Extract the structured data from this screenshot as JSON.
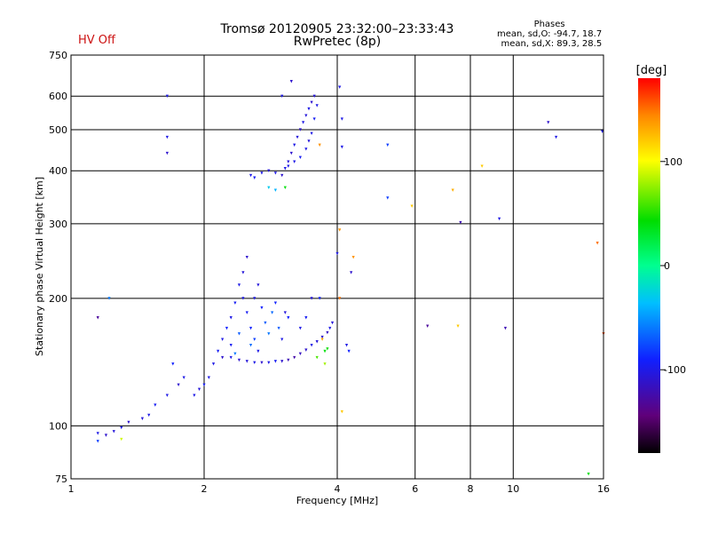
{
  "header": {
    "title_line1": "Tromsø 20120905 23:32:00–23:33:43",
    "title_line2": "RwPretec (8p)",
    "status": "HV Off",
    "status_color": "#cc1111"
  },
  "stats": {
    "heading": "Phases",
    "line_o": "mean, sd,O: -94.7, 18.7",
    "line_x": "mean, sd,X:  89.3, 28.5"
  },
  "colorbar": {
    "label": "[deg]",
    "min": -180,
    "max": 180,
    "ticks": [
      100,
      0,
      -100
    ],
    "tick_labels": [
      "100",
      "0",
      "-100"
    ]
  },
  "chart_data": {
    "type": "scatter",
    "title": "Tromsø 20120905 23:32:00–23:33:43",
    "subtitle": "RwPretec (8p)",
    "xlabel": "Frequency [MHz]",
    "ylabel": "Stationary phase Virtual Height [km]",
    "x_scale": "log",
    "y_scale": "log",
    "xlim": [
      1,
      16
    ],
    "ylim": [
      75,
      750
    ],
    "grid": true,
    "x_ticks": [
      1,
      2,
      4,
      6,
      8,
      10,
      16
    ],
    "x_tick_labels": [
      "1",
      "2",
      "4",
      "6",
      "8",
      "10",
      "16"
    ],
    "y_ticks": [
      75,
      100,
      200,
      300,
      400,
      500,
      600,
      750
    ],
    "y_tick_labels": [
      "75",
      "100",
      "200",
      "300",
      "400",
      "500",
      "600",
      "750"
    ],
    "color_encodes": "phase [deg]",
    "points": [
      [
        1.15,
        96,
        -100
      ],
      [
        1.2,
        95,
        -110
      ],
      [
        1.25,
        97,
        -105
      ],
      [
        1.3,
        99,
        -100
      ],
      [
        1.35,
        102,
        -110
      ],
      [
        1.45,
        104,
        -105
      ],
      [
        1.5,
        106,
        -100
      ],
      [
        1.55,
        112,
        -95
      ],
      [
        1.65,
        118,
        -100
      ],
      [
        1.75,
        125,
        -110
      ],
      [
        1.8,
        130,
        -100
      ],
      [
        1.9,
        118,
        -100
      ],
      [
        1.95,
        122,
        -105
      ],
      [
        2.0,
        125,
        -95
      ],
      [
        2.05,
        130,
        -100
      ],
      [
        1.7,
        140,
        -90
      ],
      [
        2.1,
        140,
        -100
      ],
      [
        2.15,
        150,
        -95
      ],
      [
        2.2,
        160,
        -100
      ],
      [
        2.2,
        145,
        -110
      ],
      [
        2.25,
        170,
        -90
      ],
      [
        2.3,
        180,
        -100
      ],
      [
        2.35,
        195,
        -95
      ],
      [
        2.4,
        215,
        -100
      ],
      [
        2.45,
        230,
        -105
      ],
      [
        2.5,
        250,
        -110
      ],
      [
        2.45,
        200,
        -100
      ],
      [
        2.5,
        185,
        -95
      ],
      [
        2.55,
        170,
        -90
      ],
      [
        2.6,
        160,
        -80
      ],
      [
        2.6,
        200,
        -100
      ],
      [
        2.65,
        215,
        -105
      ],
      [
        2.7,
        190,
        -90
      ],
      [
        2.75,
        175,
        -70
      ],
      [
        2.8,
        165,
        -60
      ],
      [
        2.85,
        185,
        -65
      ],
      [
        2.9,
        195,
        -90
      ],
      [
        2.95,
        170,
        -70
      ],
      [
        3.0,
        160,
        -100
      ],
      [
        3.05,
        185,
        -105
      ],
      [
        3.1,
        180,
        -90
      ],
      [
        2.3,
        155,
        -95
      ],
      [
        2.35,
        148,
        -60
      ],
      [
        2.4,
        165,
        -70
      ],
      [
        2.55,
        155,
        -65
      ],
      [
        2.65,
        150,
        -100
      ],
      [
        2.3,
        145,
        -100
      ],
      [
        2.4,
        143,
        -110
      ],
      [
        2.5,
        142,
        -105
      ],
      [
        2.6,
        141,
        -100
      ],
      [
        2.7,
        141,
        -110
      ],
      [
        2.8,
        141,
        -100
      ],
      [
        2.9,
        142,
        -95
      ],
      [
        3.0,
        142,
        -110
      ],
      [
        3.1,
        143,
        -120
      ],
      [
        3.2,
        145,
        -125
      ],
      [
        3.3,
        148,
        -115
      ],
      [
        3.4,
        151,
        -110
      ],
      [
        3.5,
        155,
        -100
      ],
      [
        3.6,
        158,
        -105
      ],
      [
        3.7,
        162,
        -110
      ],
      [
        3.8,
        166,
        -115
      ],
      [
        3.85,
        170,
        -100
      ],
      [
        3.9,
        175,
        -105
      ],
      [
        3.3,
        170,
        -100
      ],
      [
        3.4,
        180,
        -95
      ],
      [
        3.5,
        200,
        -105
      ],
      [
        3.65,
        200,
        -90
      ],
      [
        3.75,
        150,
        40
      ],
      [
        3.8,
        152,
        45
      ],
      [
        3.6,
        145,
        60
      ],
      [
        3.7,
        160,
        130
      ],
      [
        3.75,
        140,
        80
      ],
      [
        4.05,
        200,
        150
      ],
      [
        4.2,
        155,
        -100
      ],
      [
        4.25,
        150,
        -90
      ],
      [
        4.1,
        108,
        120
      ],
      [
        2.55,
        390,
        -100
      ],
      [
        2.6,
        385,
        -95
      ],
      [
        2.7,
        395,
        -100
      ],
      [
        2.8,
        400,
        -105
      ],
      [
        2.9,
        395,
        -100
      ],
      [
        3.0,
        390,
        -110
      ],
      [
        3.05,
        405,
        -100
      ],
      [
        3.1,
        420,
        -105
      ],
      [
        3.15,
        440,
        -110
      ],
      [
        3.2,
        460,
        -100
      ],
      [
        3.25,
        480,
        -105
      ],
      [
        3.3,
        500,
        -110
      ],
      [
        3.35,
        520,
        -100
      ],
      [
        3.4,
        540,
        -105
      ],
      [
        3.45,
        560,
        -100
      ],
      [
        3.5,
        580,
        -110
      ],
      [
        3.55,
        600,
        -105
      ],
      [
        3.6,
        570,
        -100
      ],
      [
        3.55,
        530,
        -95
      ],
      [
        3.5,
        490,
        -100
      ],
      [
        3.45,
        470,
        -105
      ],
      [
        3.4,
        450,
        -100
      ],
      [
        3.3,
        430,
        -95
      ],
      [
        3.2,
        420,
        -100
      ],
      [
        3.1,
        410,
        -100
      ],
      [
        3.15,
        650,
        -110
      ],
      [
        2.8,
        365,
        -30
      ],
      [
        2.9,
        360,
        -40
      ],
      [
        3.05,
        365,
        40
      ],
      [
        3.65,
        460,
        140
      ],
      [
        3.0,
        600,
        -100
      ],
      [
        1.22,
        200,
        -60
      ],
      [
        1.15,
        180,
        -130
      ],
      [
        1.65,
        600,
        -100
      ],
      [
        1.65,
        480,
        -100
      ],
      [
        1.65,
        440,
        -110
      ],
      [
        4.05,
        630,
        -100
      ],
      [
        4.1,
        530,
        -100
      ],
      [
        4.1,
        455,
        -100
      ],
      [
        4.05,
        290,
        140
      ],
      [
        4.0,
        255,
        -100
      ],
      [
        4.35,
        250,
        140
      ],
      [
        4.3,
        230,
        -110
      ],
      [
        5.2,
        460,
        -80
      ],
      [
        5.2,
        345,
        -80
      ],
      [
        5.9,
        330,
        120
      ],
      [
        6.4,
        172,
        -130
      ],
      [
        7.3,
        360,
        130
      ],
      [
        7.5,
        172,
        120
      ],
      [
        7.6,
        302,
        -120
      ],
      [
        8.5,
        410,
        120
      ],
      [
        9.3,
        308,
        -100
      ],
      [
        9.6,
        170,
        -120
      ],
      [
        12.0,
        520,
        -110
      ],
      [
        12.5,
        480,
        -100
      ],
      [
        15.5,
        270,
        150
      ],
      [
        15.9,
        495,
        -100
      ],
      [
        16.0,
        165,
        160
      ],
      [
        14.8,
        77,
        40
      ],
      [
        1.15,
        92,
        -80
      ],
      [
        1.3,
        93,
        90
      ]
    ]
  }
}
